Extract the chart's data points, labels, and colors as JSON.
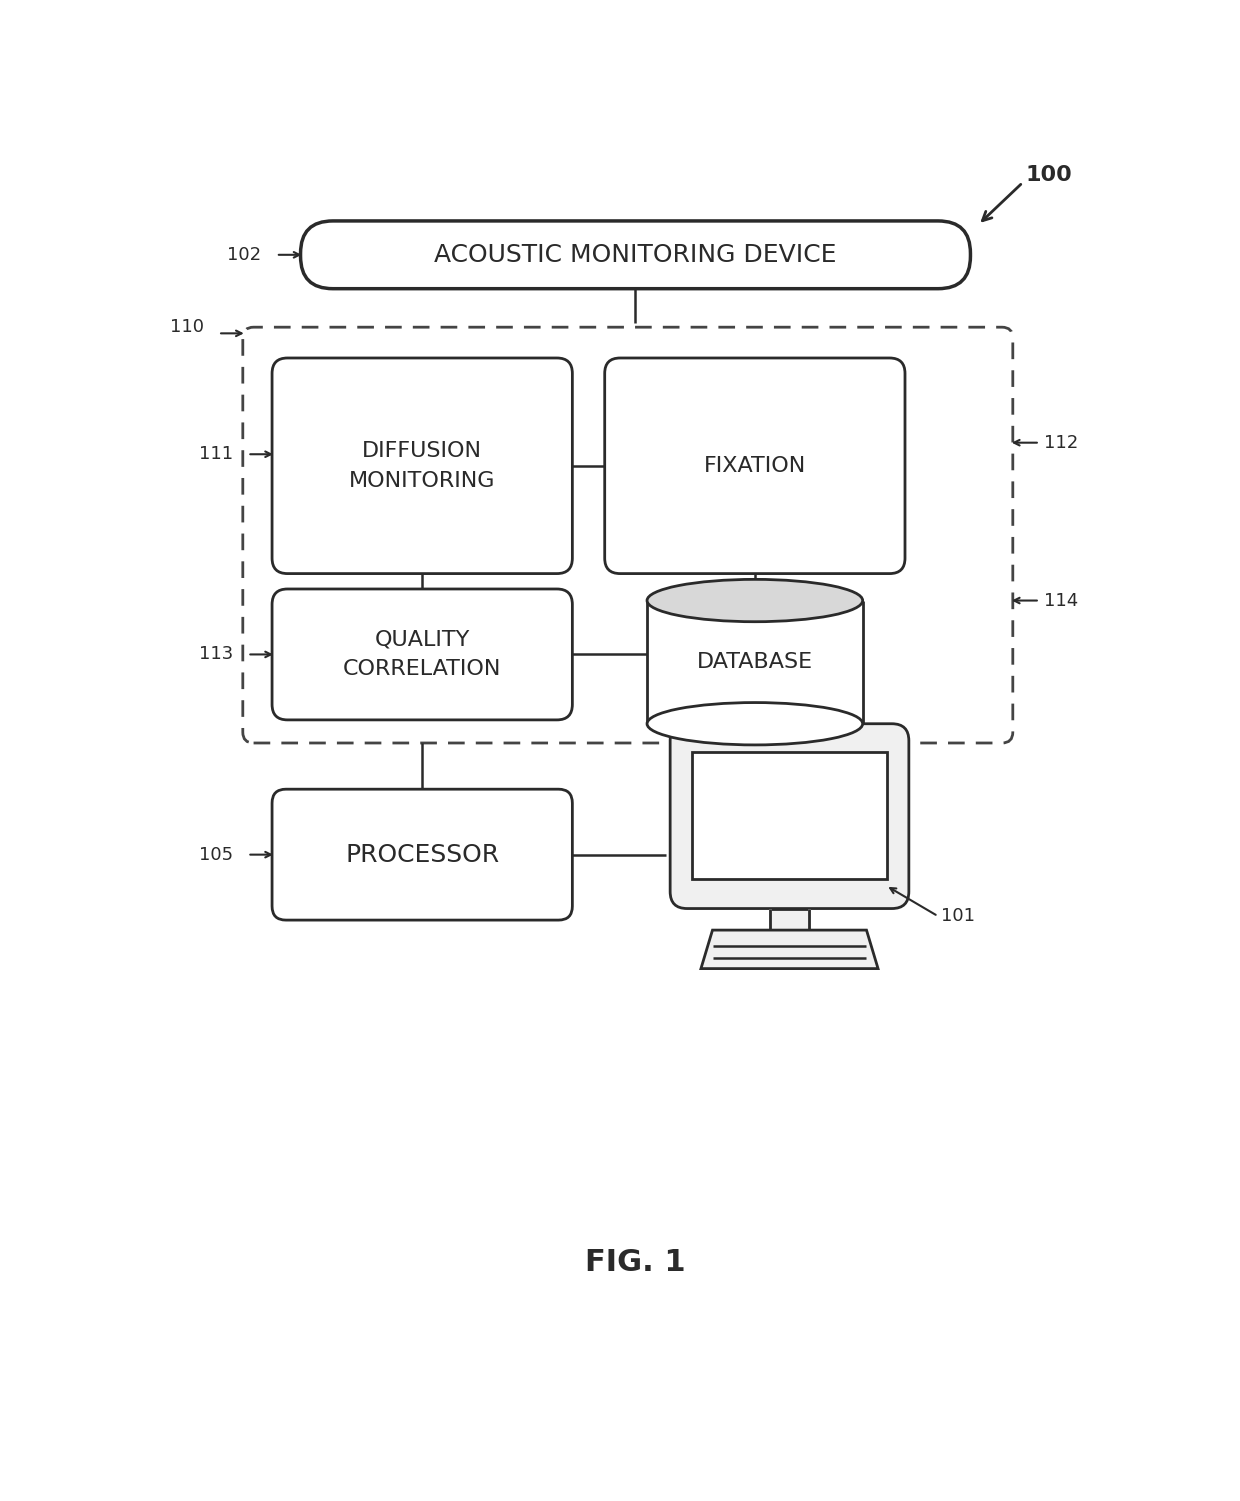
{
  "bg_color": "#ffffff",
  "fig_title": "FIG. 1",
  "labels": {
    "acoustic": "ACOUSTIC MONITORING DEVICE",
    "diffusion": "DIFFUSION\nMONITORING",
    "fixation": "FIXATION",
    "quality": "QUALITY\nCORRELATION",
    "database": "DATABASE",
    "processor": "PROCESSOR"
  },
  "font_size_box": 16,
  "font_size_ref": 13,
  "font_size_title": 22,
  "line_color": "#2a2a2a",
  "box_face_color": "#ffffff",
  "dashed_box_color": "#444444",
  "acoustic_font": 18,
  "processor_font": 18
}
